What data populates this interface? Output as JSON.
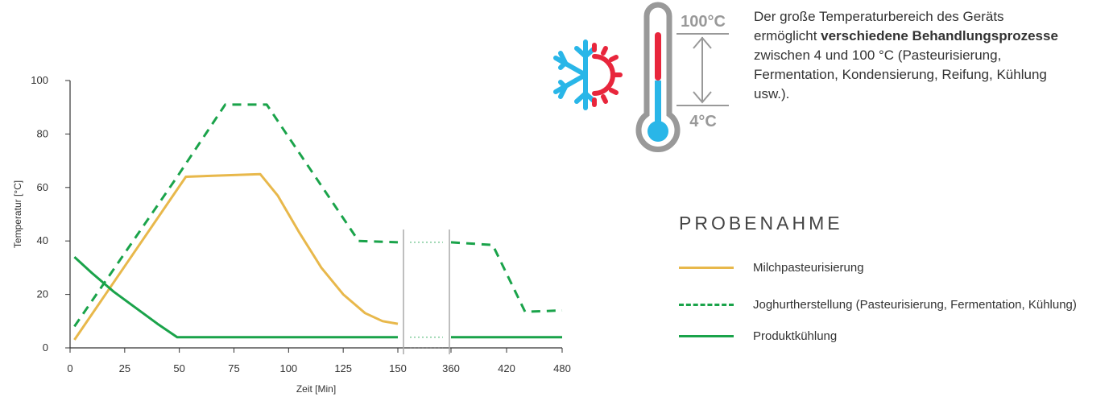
{
  "info": {
    "text_before": "Der große Temperaturbereich des Geräts ermöglicht ",
    "text_bold": "verschiedene Behandlungsprozesse",
    "text_after": " zwischen 4 und 100 °C (Pasteurisierung, Fermentation, Kondensierung, Reifung, Kühlung usw.).",
    "thermo_high": "100°C",
    "thermo_low": "4°C"
  },
  "legend": {
    "title": "PROBENAHME",
    "items": [
      {
        "label": "Milchpasteurisierung",
        "color": "#e8b84b",
        "style": "solid"
      },
      {
        "label": "Joghurtherstellung (Pasteurisierung, Fermentation, Kühlung)",
        "color": "#1aa34a",
        "style": "dashed"
      },
      {
        "label": "Produktkühlung",
        "color": "#1aa34a",
        "style": "solid"
      }
    ]
  },
  "colors": {
    "cold": "#29b6e8",
    "hot": "#e8263c",
    "gauge": "#999999"
  },
  "chart_data": {
    "type": "line",
    "xlabel": "Zeit [Min]",
    "ylabel": "Temperatur [°C]",
    "ylim": [
      0,
      100
    ],
    "yticks": [
      0,
      20,
      40,
      60,
      80,
      100
    ],
    "x_segments": [
      {
        "range": [
          0,
          150
        ],
        "ticks": [
          0,
          25,
          50,
          75,
          100,
          125,
          150
        ]
      },
      {
        "range": [
          360,
          480
        ],
        "ticks": [
          360,
          420,
          480
        ]
      }
    ],
    "axis_break": [
      150,
      360
    ],
    "series": [
      {
        "name": "Milchpasteurisierung",
        "color": "#e8b84b",
        "style": "solid",
        "points": [
          [
            2,
            3
          ],
          [
            53,
            64
          ],
          [
            87,
            65
          ],
          [
            95,
            57
          ],
          [
            105,
            43
          ],
          [
            115,
            30
          ],
          [
            125,
            20
          ],
          [
            135,
            13
          ],
          [
            143,
            10
          ],
          [
            150,
            9
          ]
        ]
      },
      {
        "name": "Joghurtherstellung (Pasteurisierung, Fermentation, Kühlung)",
        "color": "#1aa34a",
        "style": "dashed",
        "points": [
          [
            2,
            8
          ],
          [
            49,
            64
          ],
          [
            71,
            91
          ],
          [
            90,
            91
          ],
          [
            132,
            40
          ],
          [
            150,
            39.5
          ],
          [
            360,
            39.5
          ],
          [
            405,
            38.5
          ],
          [
            440,
            13.5
          ],
          [
            480,
            14
          ]
        ]
      },
      {
        "name": "Produktkühlung",
        "color": "#1aa34a",
        "style": "solid",
        "points": [
          [
            2,
            34
          ],
          [
            10,
            28
          ],
          [
            20,
            21
          ],
          [
            30,
            15
          ],
          [
            40,
            9
          ],
          [
            49,
            4
          ],
          [
            150,
            4
          ],
          [
            360,
            4
          ],
          [
            480,
            4
          ]
        ]
      }
    ]
  }
}
